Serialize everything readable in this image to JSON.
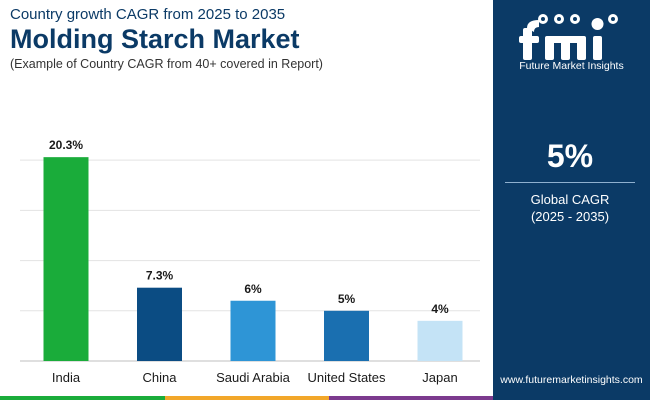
{
  "header": {
    "subtitle": "Country growth CAGR from 2025 to 2035",
    "title": "Molding Starch Market",
    "note": "(Example of Country CAGR from 40+ covered in Report)"
  },
  "chart_data": {
    "type": "bar",
    "categories": [
      "India",
      "China",
      "Saudi Arabia",
      "United States",
      "Japan"
    ],
    "values": [
      20.3,
      7.3,
      6,
      5,
      4
    ],
    "value_labels": [
      "20.3%",
      "7.3%",
      "6%",
      "5%",
      "4%"
    ],
    "bar_colors": [
      "#1aac3a",
      "#0b4c83",
      "#2e95d6",
      "#1a6fb0",
      "#c4e3f6"
    ],
    "ylim": [
      0,
      24
    ],
    "grid": true,
    "title": "",
    "xlabel": "",
    "ylabel": ""
  },
  "panel": {
    "brand": "Future Market Insights",
    "cagr_value": "5%",
    "cagr_label": "Global CAGR",
    "cagr_period": "(2025 - 2035)",
    "website": "www.futuremarketinsights.com"
  },
  "colors": {
    "navy": "#0b3a66",
    "footer": [
      "#1aac3a",
      "#f2a72a",
      "#7c3a8e"
    ]
  }
}
